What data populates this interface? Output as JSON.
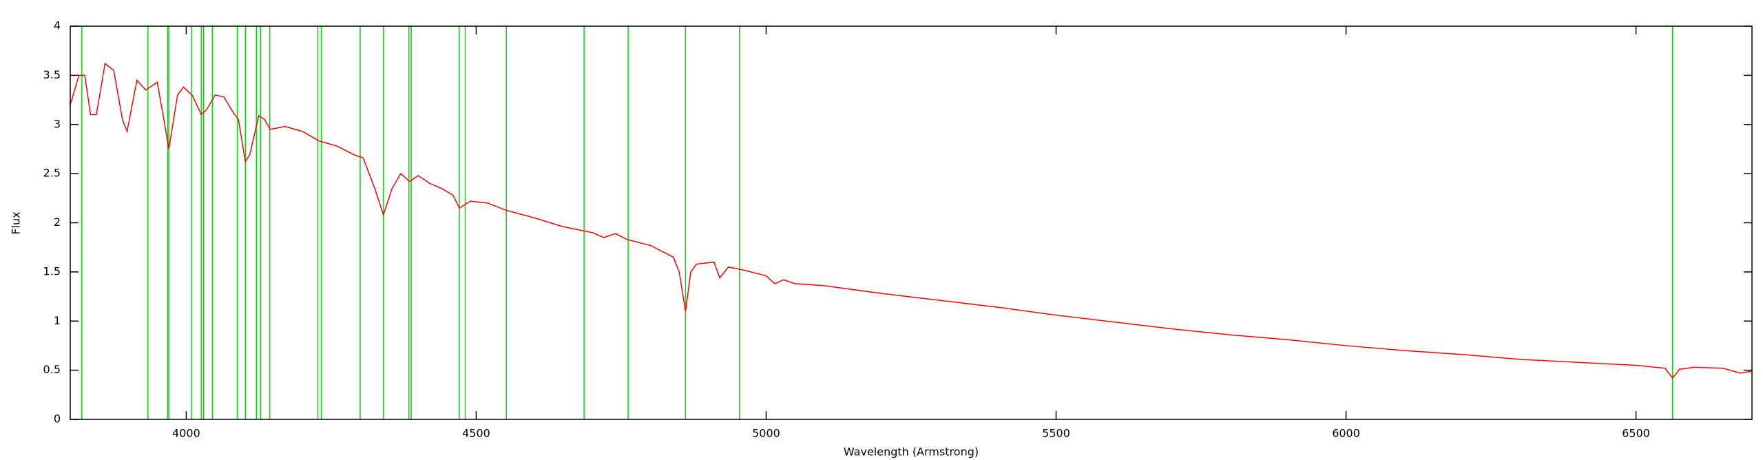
{
  "chart_data": {
    "type": "line",
    "xlabel": "Wavelength (Armstrong)",
    "ylabel": "Flux",
    "xlim": [
      3800,
      6700
    ],
    "xticks": [
      4000,
      4500,
      5000,
      5500,
      6000,
      6500
    ],
    "ylim": [
      0,
      4
    ],
    "yticks": [
      0,
      0.5,
      1,
      1.5,
      2,
      2.5,
      3,
      3.5,
      4
    ],
    "lines": {
      "color": "#00dd00",
      "x": [
        3820,
        3934,
        3968,
        3970,
        4009,
        4026,
        4030,
        4045,
        4088,
        4102,
        4121,
        4128,
        4144,
        4227,
        4233,
        4300,
        4340,
        4384,
        4388,
        4471,
        4481,
        4552,
        4686,
        4762,
        4861,
        4954,
        6563
      ]
    },
    "series": [
      {
        "color": "#ff0000",
        "x": [
          3800,
          3815,
          3825,
          3835,
          3845,
          3860,
          3875,
          3890,
          3898,
          3915,
          3930,
          3950,
          3960,
          3970,
          3985,
          3995,
          4010,
          4026,
          4035,
          4050,
          4065,
          4080,
          4090,
          4102,
          4110,
          4125,
          4135,
          4145,
          4170,
          4200,
          4230,
          4260,
          4290,
          4305,
          4325,
          4340,
          4355,
          4370,
          4385,
          4400,
          4420,
          4440,
          4460,
          4471,
          4490,
          4520,
          4550,
          4600,
          4650,
          4700,
          4720,
          4740,
          4760,
          4800,
          4840,
          4850,
          4861,
          4870,
          4880,
          4910,
          4920,
          4935,
          4960,
          5000,
          5015,
          5030,
          5050,
          5100,
          5200,
          5300,
          5400,
          5500,
          5600,
          5700,
          5800,
          5900,
          6000,
          6100,
          6200,
          6300,
          6400,
          6500,
          6550,
          6563,
          6575,
          6600,
          6650,
          6680,
          6700
        ],
        "values": [
          3.2,
          3.5,
          3.5,
          3.1,
          3.1,
          3.62,
          3.55,
          3.05,
          2.93,
          3.45,
          3.35,
          3.43,
          3.1,
          2.75,
          3.3,
          3.38,
          3.3,
          3.1,
          3.15,
          3.3,
          3.28,
          3.13,
          3.05,
          2.62,
          2.7,
          3.09,
          3.05,
          2.95,
          2.98,
          2.93,
          2.83,
          2.78,
          2.69,
          2.66,
          2.35,
          2.08,
          2.35,
          2.5,
          2.42,
          2.48,
          2.4,
          2.35,
          2.28,
          2.15,
          2.22,
          2.2,
          2.13,
          2.05,
          1.96,
          1.9,
          1.85,
          1.89,
          1.83,
          1.77,
          1.65,
          1.5,
          1.1,
          1.5,
          1.58,
          1.6,
          1.44,
          1.55,
          1.52,
          1.46,
          1.38,
          1.42,
          1.38,
          1.36,
          1.28,
          1.21,
          1.14,
          1.06,
          0.99,
          0.92,
          0.86,
          0.81,
          0.75,
          0.7,
          0.66,
          0.61,
          0.58,
          0.55,
          0.52,
          0.42,
          0.51,
          0.53,
          0.52,
          0.47,
          0.49
        ]
      }
    ]
  }
}
